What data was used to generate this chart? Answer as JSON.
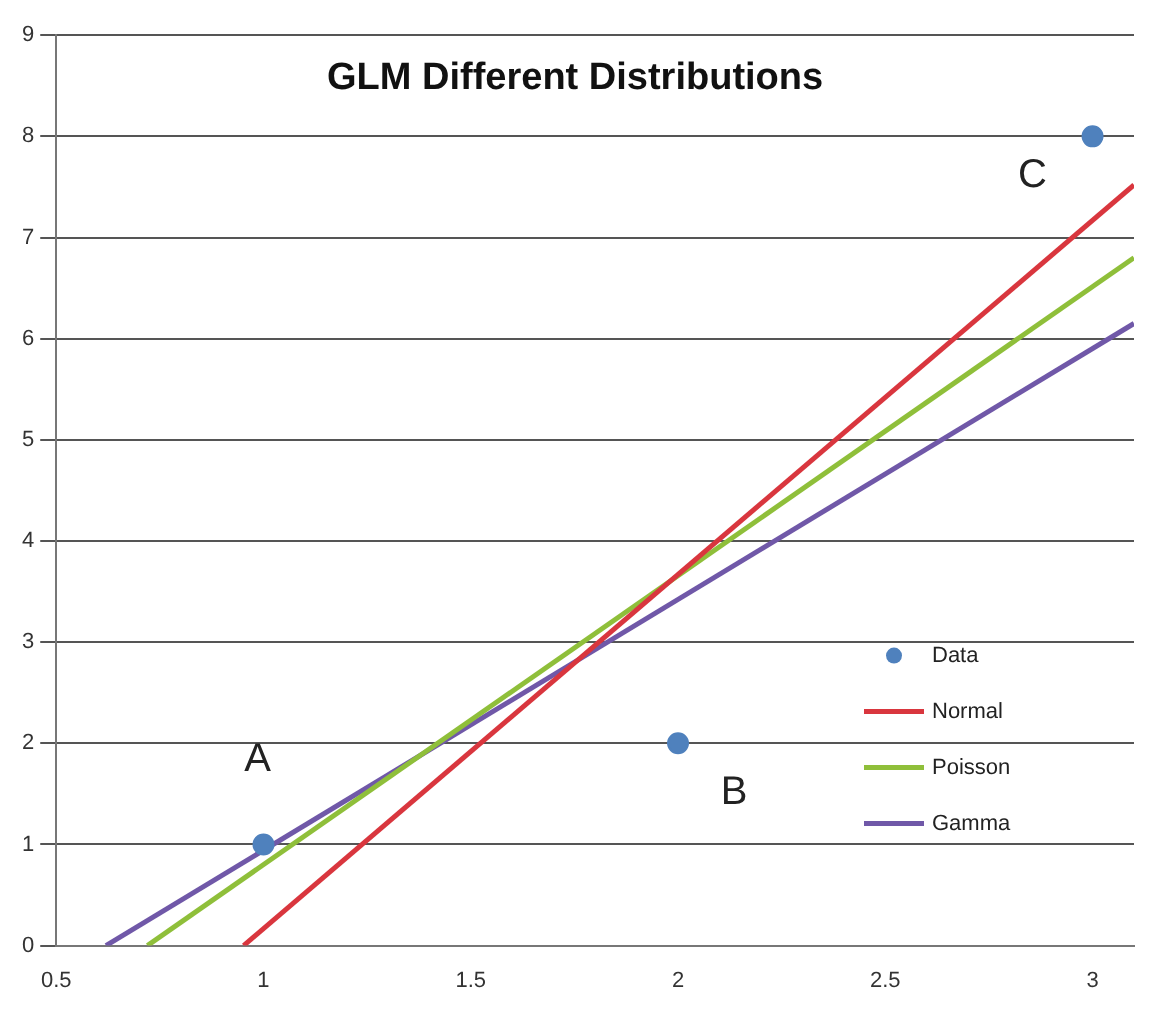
{
  "chart_data": {
    "type": "line",
    "title": "GLM Different Distributions",
    "xlim": [
      0.5,
      3.1
    ],
    "xticks": [
      0.5,
      1,
      1.5,
      2,
      2.5,
      3
    ],
    "ylim": [
      0,
      9
    ],
    "yticks": [
      0,
      1,
      2,
      3,
      4,
      5,
      6,
      7,
      8,
      9
    ],
    "grid": "y",
    "legend": "bottom right",
    "series": [
      {
        "name": "Data",
        "type": "scatter",
        "marker": "circle",
        "color": "#4f81bd",
        "x": [
          1,
          2,
          3
        ],
        "values": [
          1,
          2,
          8
        ]
      },
      {
        "name": "Normal",
        "type": "line",
        "marker": "none",
        "color": "#d9363e",
        "x": [
          0.952,
          3.1
        ],
        "values": [
          0,
          7.52
        ]
      },
      {
        "name": "Poisson",
        "type": "line",
        "marker": "none",
        "color": "#8fbf3a",
        "x": [
          0.72,
          3.1
        ],
        "values": [
          0,
          6.8
        ]
      },
      {
        "name": "Gamma",
        "type": "line",
        "marker": "none",
        "color": "#7058a8",
        "x": [
          0.62,
          3.1
        ],
        "values": [
          0,
          6.15
        ]
      }
    ],
    "annotations": [
      {
        "text": "A",
        "x": 1,
        "y": 1
      },
      {
        "text": "B",
        "x": 2,
        "y": 2
      },
      {
        "text": "C",
        "x": 3,
        "y": 8
      }
    ]
  }
}
